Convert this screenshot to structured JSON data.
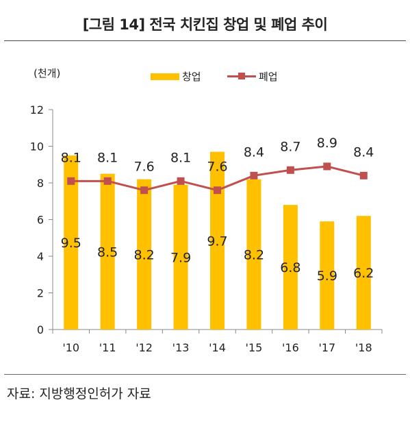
{
  "title": "[그림 14] 전국 치킨집 창업 및 폐업 추이",
  "source": "자료: 지방행정인허가 자료",
  "chart_data": {
    "type": "bar",
    "title": "[그림 14] 전국 치킨집 창업 및 폐업 추이",
    "unit": "(천개)",
    "xlabel": "",
    "ylabel": "",
    "ylim": [
      0,
      12
    ],
    "yticks": [
      "0",
      "2",
      "4",
      "6",
      "8",
      "10",
      "12"
    ],
    "categories": [
      "'10",
      "'11",
      "'12",
      "'13",
      "'14",
      "'15",
      "'16",
      "'17",
      "'18"
    ],
    "grid": false,
    "legend": "top",
    "series": [
      {
        "name": "창업",
        "type": "bar",
        "color": "#FFC000",
        "values": [
          9.5,
          8.5,
          8.2,
          7.9,
          9.7,
          8.2,
          6.8,
          5.9,
          6.2
        ],
        "labels": [
          "9.5",
          "8.5",
          "8.2",
          "7.9",
          "9.7",
          "8.2",
          "6.8",
          "5.9",
          "6.2"
        ]
      },
      {
        "name": "폐업",
        "type": "line",
        "color": "#C0504D",
        "marker": "square",
        "values": [
          8.1,
          8.1,
          7.6,
          8.1,
          7.6,
          8.4,
          8.7,
          8.9,
          8.4
        ],
        "labels": [
          "8.1",
          "8.1",
          "7.6",
          "8.1",
          "7.6",
          "8.4",
          "8.7",
          "8.9",
          "8.4"
        ]
      }
    ]
  }
}
